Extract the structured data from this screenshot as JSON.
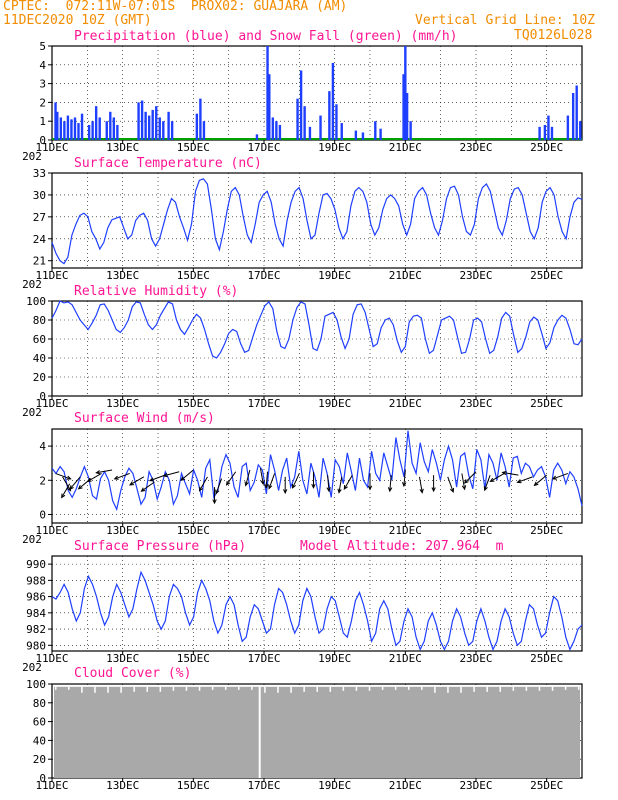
{
  "header": {
    "line1_left": "CPTEC:  072:11W-07:01S  PROX02: GUAJARA (AM)",
    "line2_left": "11DEC2020 10Z (GMT)",
    "line2_right": "Vertical Grid Line: 10Z",
    "line3_right": "TQ0126L028"
  },
  "colors": {
    "header": "#f28c00",
    "titles": "#ff1493",
    "precip": "#1f3fff",
    "snow": "#00a000",
    "temperature": "#1f3fff",
    "humidity": "#1f3fff",
    "wind": "#1f3fff",
    "wind_arrows": "#000000",
    "pressure": "#1f3fff",
    "cloud": "#a9a9a9"
  },
  "x_axis": {
    "day_labels": [
      "11DEC",
      "13DEC",
      "15DEC",
      "17DEC",
      "19DEC",
      "21DEC",
      "23DEC",
      "25DEC"
    ],
    "year_fragment": "202"
  },
  "chart_data": [
    {
      "type": "bar",
      "title": "Precipitation (blue) and Snow Fall (green) (mm/h)",
      "y_ticks": [
        "0",
        "1",
        "2",
        "3",
        "4",
        "5"
      ],
      "ylim": [
        0,
        5
      ],
      "x_unit": "days since 11DEC2020 10Z",
      "precip_spikes": [
        [
          0.1,
          2.0
        ],
        [
          0.15,
          1.5
        ],
        [
          0.25,
          1.2
        ],
        [
          0.35,
          1.0
        ],
        [
          0.45,
          1.3
        ],
        [
          0.55,
          1.1
        ],
        [
          0.65,
          1.2
        ],
        [
          0.75,
          0.9
        ],
        [
          0.85,
          1.4
        ],
        [
          1.05,
          0.8
        ],
        [
          1.15,
          1.0
        ],
        [
          1.25,
          1.8
        ],
        [
          1.35,
          1.2
        ],
        [
          1.55,
          1.0
        ],
        [
          1.65,
          1.5
        ],
        [
          1.75,
          1.2
        ],
        [
          1.85,
          0.8
        ],
        [
          2.45,
          2.0
        ],
        [
          2.55,
          2.1
        ],
        [
          2.65,
          1.5
        ],
        [
          2.75,
          1.3
        ],
        [
          2.85,
          1.6
        ],
        [
          2.95,
          1.8
        ],
        [
          3.05,
          1.2
        ],
        [
          3.15,
          1.0
        ],
        [
          3.3,
          1.5
        ],
        [
          3.4,
          1.0
        ],
        [
          4.1,
          1.4
        ],
        [
          4.2,
          2.2
        ],
        [
          4.3,
          1.0
        ],
        [
          5.8,
          0.3
        ],
        [
          6.1,
          5.0
        ],
        [
          6.15,
          3.5
        ],
        [
          6.25,
          1.2
        ],
        [
          6.35,
          1.0
        ],
        [
          6.45,
          0.8
        ],
        [
          6.95,
          2.2
        ],
        [
          7.05,
          3.7
        ],
        [
          7.15,
          1.8
        ],
        [
          7.3,
          0.7
        ],
        [
          7.6,
          1.3
        ],
        [
          7.85,
          2.6
        ],
        [
          7.95,
          4.1
        ],
        [
          8.05,
          1.9
        ],
        [
          8.2,
          0.9
        ],
        [
          8.6,
          0.5
        ],
        [
          8.8,
          0.4
        ],
        [
          9.15,
          1.0
        ],
        [
          9.3,
          0.6
        ],
        [
          9.95,
          3.5
        ],
        [
          10.0,
          5.0
        ],
        [
          10.05,
          2.5
        ],
        [
          10.15,
          1.0
        ],
        [
          13.8,
          0.7
        ],
        [
          13.95,
          0.8
        ],
        [
          14.05,
          1.3
        ],
        [
          14.15,
          0.7
        ],
        [
          14.6,
          1.3
        ],
        [
          14.75,
          2.5
        ],
        [
          14.85,
          2.9
        ],
        [
          14.95,
          1.0
        ]
      ],
      "snow": 0
    },
    {
      "type": "line",
      "title": "Surface Temperature (nC)",
      "y_ticks": [
        "21",
        "24",
        "27",
        "30",
        "33"
      ],
      "ylim": [
        20,
        33
      ],
      "series": [
        {
          "values": [
            23.5,
            22,
            21,
            20.6,
            21.5,
            24.5,
            26,
            27.2,
            27.5,
            27,
            25,
            24,
            22.6,
            23.5,
            25.5,
            26.6,
            26.8,
            27,
            25.5,
            24,
            24.5,
            26.5,
            27.2,
            27.5,
            26.5,
            24,
            23,
            24,
            26,
            28,
            29.5,
            29,
            27,
            25.5,
            23.8,
            26,
            30.5,
            32,
            32.2,
            31.5,
            28,
            24,
            22.5,
            25,
            28,
            30.5,
            31,
            30,
            27,
            24.5,
            23.5,
            26,
            29,
            30,
            30.5,
            29,
            26,
            24,
            23,
            26.5,
            29,
            30.5,
            31,
            29.5,
            26.5,
            24,
            24.5,
            27.5,
            30,
            30.2,
            29.5,
            28,
            25.5,
            24,
            25,
            28.5,
            30.5,
            31,
            30.5,
            29,
            26,
            24.5,
            25.5,
            28,
            29.5,
            30,
            29.5,
            28.5,
            26,
            24.5,
            26,
            29.5,
            30.5,
            31,
            30,
            27.5,
            25.5,
            24.5,
            26.5,
            29.5,
            31,
            31.2,
            30,
            27,
            25,
            24.5,
            26,
            29.5,
            31,
            31.5,
            30.5,
            28,
            25.5,
            24.5,
            26.5,
            29.5,
            30.8,
            31,
            30,
            27.5,
            25,
            24,
            25.5,
            29,
            30.5,
            31,
            30,
            27,
            25,
            24,
            27,
            29,
            29.6,
            29.4
          ]
        }
      ]
    },
    {
      "type": "line",
      "title": "Relative Humidity (%)",
      "y_ticks": [
        "0",
        "20",
        "40",
        "60",
        "80",
        "100"
      ],
      "ylim": [
        0,
        100
      ],
      "series": [
        {
          "values": [
            82,
            90,
            100,
            98,
            99,
            96,
            88,
            80,
            75,
            70,
            77,
            85,
            96,
            97,
            90,
            80,
            70,
            67,
            72,
            80,
            94,
            99,
            98,
            86,
            75,
            70,
            75,
            85,
            92,
            99,
            97,
            80,
            70,
            65,
            72,
            80,
            86,
            82,
            70,
            55,
            42,
            40,
            46,
            55,
            66,
            70,
            68,
            55,
            46,
            48,
            62,
            75,
            85,
            95,
            99,
            92,
            68,
            52,
            50,
            60,
            80,
            93,
            99,
            97,
            75,
            50,
            48,
            60,
            84,
            86,
            88,
            80,
            62,
            50,
            60,
            86,
            96,
            97,
            88,
            70,
            52,
            55,
            72,
            80,
            82,
            75,
            58,
            46,
            52,
            78,
            84,
            85,
            82,
            60,
            45,
            48,
            64,
            80,
            82,
            84,
            80,
            62,
            45,
            46,
            60,
            80,
            82,
            78,
            60,
            45,
            48,
            62,
            82,
            88,
            84,
            64,
            46,
            50,
            62,
            78,
            83,
            80,
            66,
            50,
            56,
            72,
            80,
            85,
            82,
            70,
            55,
            54,
            60
          ]
        }
      ]
    },
    {
      "type": "line",
      "title": "Surface Wind (m/s)",
      "y_ticks": [
        "0",
        "2",
        "4"
      ],
      "ylim": [
        -0.5,
        5
      ],
      "series": [
        {
          "values": [
            2.7,
            2.4,
            2.8,
            2.5,
            1.4,
            1.0,
            1.5,
            2.2,
            2.8,
            2.2,
            1.1,
            0.9,
            2.1,
            2.5,
            2.0,
            0.8,
            0.3,
            1.4,
            2.2,
            2.7,
            2.4,
            1.5,
            0.6,
            1.0,
            2.5,
            2.0,
            0.9,
            1.6,
            2.5,
            2.0,
            0.6,
            1.1,
            2.4,
            1.8,
            1.2,
            2.6,
            2.0,
            1.0,
            2.7,
            3.2,
            1.0,
            1.4,
            2.8,
            3.5,
            3.0,
            1.6,
            1.0,
            2.8,
            3.0,
            1.4,
            1.9,
            2.9,
            2.6,
            1.2,
            3.5,
            2.6,
            1.4,
            2.6,
            3.3,
            1.6,
            2.2,
            3.7,
            2.0,
            1.2,
            3.0,
            2.2,
            1.0,
            3.3,
            2.4,
            1.0,
            3.2,
            2.8,
            1.8,
            3.6,
            2.5,
            1.4,
            3.3,
            2.0,
            1.6,
            3.7,
            2.4,
            2.0,
            3.6,
            2.8,
            2.0,
            4.5,
            3.2,
            2.2,
            4.9,
            3.0,
            2.4,
            4.2,
            3.1,
            2.5,
            3.8,
            3.0,
            2.0,
            3.2,
            4.0,
            3.2,
            1.6,
            3.4,
            3.6,
            2.3,
            1.5,
            3.8,
            3.2,
            1.5,
            3.5,
            3.0,
            2.0,
            3.6,
            2.8,
            1.6,
            3.3,
            3.4,
            2.4,
            3.0,
            2.8,
            2.2,
            2.6,
            2.8,
            2.2,
            1.0,
            2.6,
            3.0,
            2.6,
            1.8,
            2.5,
            2.2,
            1.5,
            0.5
          ]
        }
      ],
      "wind_arrows": [
        [
          0.1,
          2.4,
          110
        ],
        [
          0.3,
          2.2,
          150
        ],
        [
          0.5,
          1.8,
          210
        ],
        [
          0.8,
          2.2,
          220
        ],
        [
          1.1,
          2.1,
          230
        ],
        [
          1.4,
          2.4,
          240
        ],
        [
          1.7,
          2.6,
          260
        ],
        [
          2.2,
          2.4,
          250
        ],
        [
          2.6,
          2.2,
          240
        ],
        [
          2.9,
          1.9,
          235
        ],
        [
          3.2,
          2.3,
          250
        ],
        [
          3.6,
          2.5,
          255
        ],
        [
          4.0,
          2.6,
          230
        ],
        [
          4.4,
          2.2,
          210
        ],
        [
          4.6,
          1.6,
          180
        ],
        [
          4.8,
          2.1,
          200
        ],
        [
          5.2,
          2.5,
          215
        ],
        [
          5.6,
          2.6,
          195
        ],
        [
          5.9,
          2.7,
          170
        ],
        [
          6.1,
          2.5,
          185
        ],
        [
          6.3,
          2.4,
          200
        ],
        [
          6.6,
          2.2,
          180
        ],
        [
          7.0,
          2.4,
          205
        ],
        [
          7.4,
          2.5,
          180
        ],
        [
          7.8,
          2.3,
          175
        ],
        [
          8.2,
          2.2,
          190
        ],
        [
          8.5,
          2.3,
          210
        ],
        [
          9.0,
          2.4,
          180
        ],
        [
          9.6,
          2.3,
          185
        ],
        [
          10.0,
          2.6,
          185
        ],
        [
          10.4,
          2.2,
          170
        ],
        [
          10.8,
          2.3,
          180
        ],
        [
          11.2,
          2.2,
          160
        ],
        [
          11.6,
          2.4,
          170
        ],
        [
          12.0,
          2.5,
          225
        ],
        [
          12.4,
          2.3,
          200
        ],
        [
          12.8,
          2.4,
          240
        ],
        [
          13.2,
          2.3,
          280
        ],
        [
          13.6,
          2.2,
          250
        ],
        [
          14.0,
          2.3,
          230
        ],
        [
          14.6,
          2.4,
          250
        ]
      ]
    },
    {
      "type": "line",
      "title": "Surface Pressure (hPa)",
      "subtitle": "Model Altitude: 207.964  m",
      "y_ticks": [
        "980",
        "982",
        "984",
        "986",
        "988",
        "990"
      ],
      "ylim": [
        979.3,
        991
      ],
      "series": [
        {
          "values": [
            986,
            985.7,
            986.5,
            987.5,
            986.5,
            984.5,
            983,
            984,
            987,
            988.5,
            987.5,
            986,
            984,
            982.5,
            983.5,
            986,
            987.5,
            986.5,
            985,
            983.5,
            984.5,
            987,
            989,
            988,
            986.5,
            985,
            983,
            982,
            983,
            986,
            987.5,
            987,
            986,
            984,
            982.5,
            983.5,
            986.5,
            988,
            987,
            985.5,
            983,
            981.5,
            982.5,
            985,
            986,
            985,
            982.5,
            980.5,
            981,
            983.5,
            985,
            984.5,
            983,
            981.5,
            982,
            985,
            987,
            986.5,
            985,
            983,
            981.5,
            982.5,
            985.5,
            987,
            986,
            983.5,
            981.5,
            982,
            984.5,
            986,
            985.5,
            983.5,
            981.5,
            981,
            983,
            985.5,
            986.5,
            985,
            983,
            980.5,
            981.5,
            984.5,
            985.5,
            984.5,
            982,
            980,
            980.5,
            983,
            984.5,
            983.5,
            981,
            979.5,
            980.5,
            983,
            984,
            982.5,
            980.5,
            979.5,
            980.5,
            983,
            984.5,
            983.5,
            981.5,
            980,
            980.5,
            983,
            984.5,
            983,
            981,
            979.5,
            980.5,
            983,
            984.5,
            983.5,
            981.5,
            980,
            980.5,
            983,
            985,
            984.5,
            982.5,
            981,
            981.5,
            984,
            986,
            985.5,
            983.5,
            981,
            979.5,
            980.5,
            982,
            982.5
          ]
        }
      ]
    },
    {
      "type": "bar",
      "title": "Cloud Cover (%)",
      "y_ticks": [
        "0",
        "20",
        "40",
        "60",
        "80",
        "100"
      ],
      "ylim": [
        0,
        100
      ],
      "level_percent": 97,
      "gap_day": 5.85
    }
  ]
}
